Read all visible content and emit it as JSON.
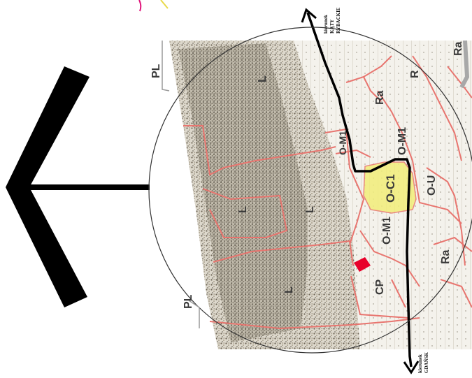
{
  "map": {
    "zones": {
      "pl_top": "PL",
      "pl_bottom": "PL",
      "l_top": "L",
      "l_mid1": "L",
      "l_mid2": "L",
      "l_bottom": "L",
      "ra_top_right": "Ra",
      "ra_upper": "Ra",
      "ra_lower": "Ra",
      "r_top": "R",
      "om1_upper": "O-M1",
      "om1_small": "O-M1",
      "oc1": "O-C1",
      "om1_lower": "O-M1",
      "ou": "O-U",
      "cp": "CP"
    },
    "direction_katy": [
      "kierunek",
      "KĄTY",
      "RYBACKIE"
    ],
    "direction_gdansk": [
      "kierunek",
      "GDAŃSK"
    ]
  },
  "colors": {
    "zone_line": "#e8756f",
    "highlight_yellow": "#f2ee7a",
    "marker_red": "#e8002a",
    "road": "#000000",
    "forest_texture": "#8a8070",
    "circle": "#333333"
  }
}
